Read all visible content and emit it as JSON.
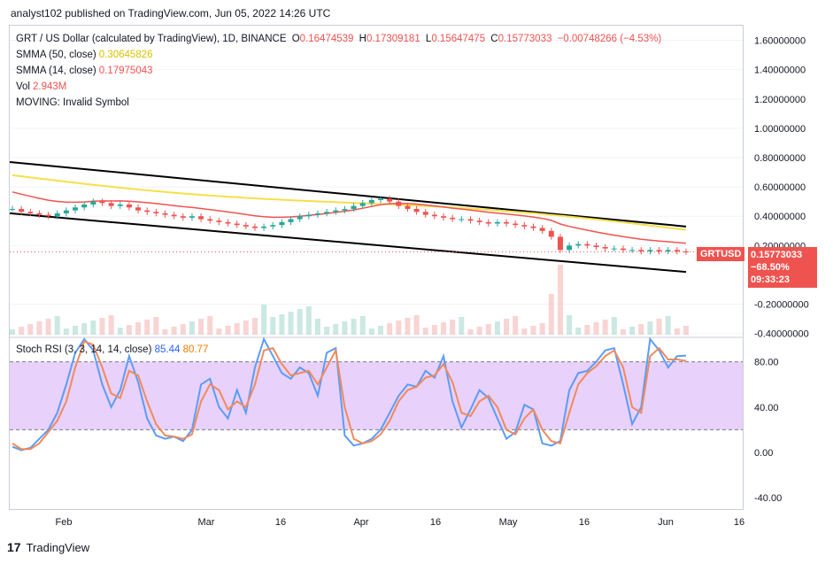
{
  "header": {
    "text": "analyst102 published on TradingView.com, Jun 05, 2022 14:26 UTC"
  },
  "legend": {
    "title": "GRT / US Dollar (calculated by TradingView), 1D, BINANCE",
    "o_label": "O",
    "o": "0.16474539",
    "h_label": "H",
    "h": "0.17309181",
    "l_label": "L",
    "l": "0.15647475",
    "c_label": "C",
    "c": "0.15773033",
    "change": "−0.00748266 (−4.53%)",
    "sma50_label": "SMMA (50, close)",
    "sma50_value": "0.30645826",
    "sma14_label": "SMMA (14, close)",
    "sma14_value": "0.17975043",
    "vol_label": "Vol",
    "vol_value": "2.943M",
    "moving_label": "MOVING: Invalid Symbol"
  },
  "rsi_legend": {
    "label": "Stoch RSI (3, 3, 14, 14, close)",
    "k": "85.44",
    "d": "80.77"
  },
  "price_tag": {
    "symbol": "GRTUSD",
    "price": "0.15773033",
    "change": "−68.50%",
    "countdown": "09:33:23"
  },
  "footer": {
    "brand": "TradingView"
  },
  "colors": {
    "up": "#26a69a",
    "down": "#ef5350",
    "sma50": "#f5e04a",
    "sma14": "#ef5350",
    "k": "#5b9cf6",
    "d": "#f08a5d",
    "rsi_band": "#e8d1fb",
    "trendline": "#000000"
  },
  "chart_data": [
    {
      "type": "candlestick",
      "title": "GRT / US Dollar, 1D, BINANCE",
      "x_ticks": [
        "Feb",
        "Mar",
        "16",
        "Apr",
        "16",
        "May",
        "16",
        "Jun",
        "16"
      ],
      "y_ticks": [
        "1.60000000",
        "1.40000000",
        "1.20000000",
        "1.00000000",
        "0.80000000",
        "0.60000000",
        "0.40000000",
        "0.20000000",
        "-0.20000000",
        "-0.40000000"
      ],
      "y_tick_values": [
        1.6,
        1.4,
        1.2,
        1.0,
        0.8,
        0.6,
        0.4,
        0.2,
        -0.2,
        -0.4
      ],
      "ylim": [
        -0.42,
        1.7
      ],
      "grid": true,
      "close_series": [
        0.45,
        0.43,
        0.42,
        0.41,
        0.4,
        0.42,
        0.44,
        0.46,
        0.48,
        0.5,
        0.49,
        0.47,
        0.48,
        0.46,
        0.44,
        0.43,
        0.42,
        0.41,
        0.4,
        0.39,
        0.4,
        0.38,
        0.37,
        0.36,
        0.35,
        0.34,
        0.33,
        0.32,
        0.33,
        0.34,
        0.36,
        0.38,
        0.4,
        0.41,
        0.42,
        0.43,
        0.44,
        0.45,
        0.47,
        0.49,
        0.51,
        0.52,
        0.5,
        0.47,
        0.45,
        0.43,
        0.41,
        0.4,
        0.39,
        0.38,
        0.38,
        0.37,
        0.36,
        0.35,
        0.36,
        0.35,
        0.34,
        0.33,
        0.32,
        0.3,
        0.26,
        0.17,
        0.2,
        0.21,
        0.2,
        0.19,
        0.18,
        0.18,
        0.17,
        0.17,
        0.16,
        0.17,
        0.16,
        0.17,
        0.16,
        0.158
      ],
      "sma50": {
        "name": "SMMA (50, close)",
        "value": 0.30645826
      },
      "sma14": {
        "name": "SMMA (14, close)",
        "value": 0.17975043
      },
      "last_close": 0.15773033
    },
    {
      "type": "line",
      "title": "Stoch RSI (3, 3, 14, 14, close)",
      "y_ticks": [
        "80.00",
        "40.00",
        "0.00",
        "-40.00"
      ],
      "y_tick_values": [
        80,
        40,
        0,
        -40
      ],
      "ylim": [
        -50,
        100
      ],
      "bands": [
        20,
        80
      ],
      "series": [
        {
          "name": "K",
          "values": [
            5,
            2,
            4,
            12,
            20,
            35,
            60,
            88,
            100,
            90,
            60,
            40,
            55,
            85,
            62,
            30,
            15,
            12,
            14,
            10,
            20,
            60,
            65,
            40,
            30,
            55,
            35,
            75,
            100,
            85,
            70,
            65,
            75,
            70,
            50,
            88,
            92,
            15,
            6,
            8,
            12,
            20,
            35,
            50,
            60,
            58,
            72,
            66,
            85,
            45,
            22,
            38,
            55,
            48,
            30,
            12,
            18,
            42,
            38,
            8,
            6,
            10,
            55,
            70,
            72,
            80,
            90,
            92,
            60,
            25,
            40,
            100,
            90,
            75,
            85,
            85.44
          ]
        },
        {
          "name": "D",
          "values": [
            8,
            3,
            3,
            8,
            18,
            28,
            45,
            75,
            98,
            95,
            75,
            52,
            48,
            72,
            68,
            45,
            25,
            15,
            14,
            12,
            16,
            45,
            60,
            55,
            38,
            45,
            40,
            60,
            90,
            92,
            78,
            68,
            70,
            72,
            60,
            75,
            90,
            40,
            12,
            8,
            10,
            16,
            28,
            45,
            55,
            58,
            66,
            68,
            78,
            62,
            35,
            32,
            45,
            50,
            40,
            20,
            16,
            30,
            38,
            20,
            10,
            8,
            35,
            60,
            70,
            76,
            85,
            90,
            75,
            40,
            35,
            85,
            92,
            82,
            82,
            80.77
          ]
        }
      ],
      "legend": "top-left"
    }
  ]
}
